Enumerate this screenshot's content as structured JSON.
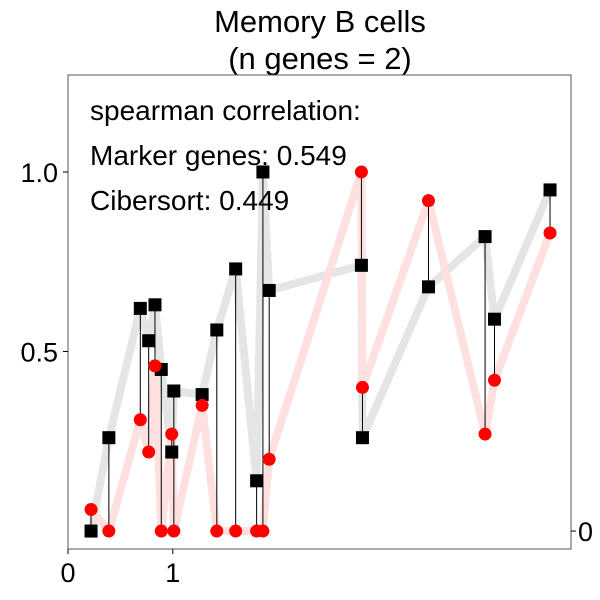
{
  "chart_data": {
    "type": "scatter",
    "title": [
      "Memory B cells",
      "(n genes = 2)"
    ],
    "annotations": [
      "spearman correlation:",
      "Marker genes: 0.549",
      "Cibersort: 0.449"
    ],
    "ylim": [
      -0.05,
      1.27
    ],
    "xlim": [
      0,
      4.8
    ],
    "y_ticks": [
      0.5,
      1.0
    ],
    "y_tick_labels": [
      "0.5",
      "1.0"
    ],
    "x_ticks": [
      0,
      1
    ],
    "x_tick_labels": [
      "0",
      "1"
    ],
    "right_tick_label": "0",
    "series": [
      {
        "marker": "square",
        "color": "#000000",
        "line_color": "#e5e5e5",
        "points": [
          {
            "x": 0.22,
            "y": 0.0
          },
          {
            "x": 0.39,
            "y": 0.26
          },
          {
            "x": 0.69,
            "y": 0.62
          },
          {
            "x": 0.77,
            "y": 0.53
          },
          {
            "x": 0.83,
            "y": 0.63
          },
          {
            "x": 0.89,
            "y": 0.45
          },
          {
            "x": 0.99,
            "y": 0.22
          },
          {
            "x": 1.01,
            "y": 0.39
          },
          {
            "x": 1.28,
            "y": 0.38
          },
          {
            "x": 1.42,
            "y": 0.56
          },
          {
            "x": 1.6,
            "y": 0.73
          },
          {
            "x": 1.8,
            "y": 0.14
          },
          {
            "x": 1.86,
            "y": 1.0
          },
          {
            "x": 1.92,
            "y": 0.67
          },
          {
            "x": 2.8,
            "y": 0.74
          },
          {
            "x": 2.81,
            "y": 0.26
          },
          {
            "x": 3.44,
            "y": 0.68
          },
          {
            "x": 3.98,
            "y": 0.82
          },
          {
            "x": 4.07,
            "y": 0.59
          },
          {
            "x": 4.6,
            "y": 0.95
          }
        ]
      },
      {
        "marker": "circle",
        "color": "#ff0000",
        "line_color": "#ffe0e0",
        "points": [
          {
            "x": 0.22,
            "y": 0.06
          },
          {
            "x": 0.39,
            "y": 0.0
          },
          {
            "x": 0.69,
            "y": 0.31
          },
          {
            "x": 0.77,
            "y": 0.22
          },
          {
            "x": 0.83,
            "y": 0.46
          },
          {
            "x": 0.89,
            "y": 0.0
          },
          {
            "x": 0.99,
            "y": 0.27
          },
          {
            "x": 1.01,
            "y": 0.0
          },
          {
            "x": 1.28,
            "y": 0.35
          },
          {
            "x": 1.42,
            "y": 0.0
          },
          {
            "x": 1.6,
            "y": 0.0
          },
          {
            "x": 1.8,
            "y": 0.0
          },
          {
            "x": 1.86,
            "y": 0.0
          },
          {
            "x": 1.92,
            "y": 0.2
          },
          {
            "x": 2.8,
            "y": 1.0
          },
          {
            "x": 2.81,
            "y": 0.4
          },
          {
            "x": 3.44,
            "y": 0.92
          },
          {
            "x": 3.98,
            "y": 0.27
          },
          {
            "x": 4.07,
            "y": 0.42
          },
          {
            "x": 4.6,
            "y": 0.83
          }
        ]
      }
    ]
  }
}
